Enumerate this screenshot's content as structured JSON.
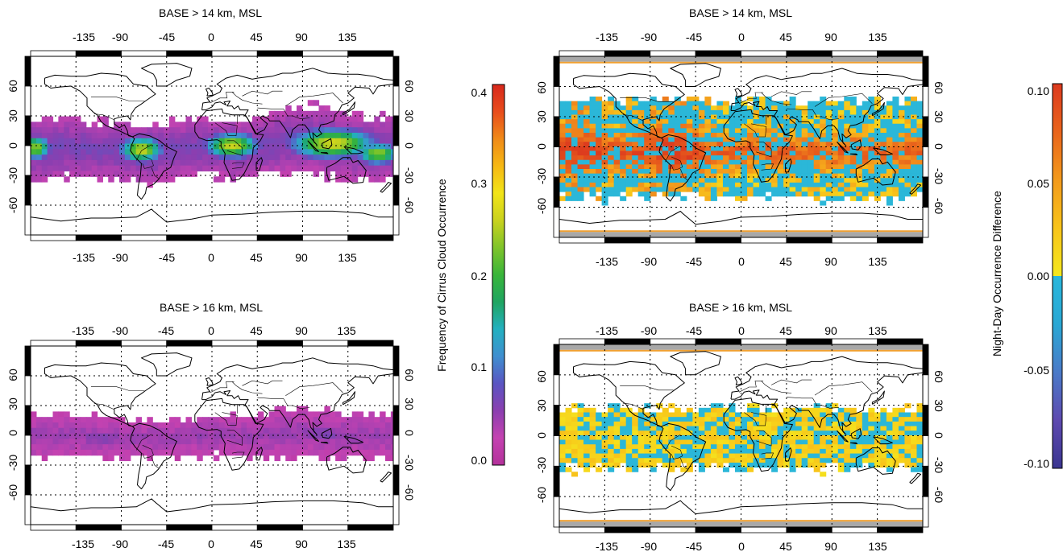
{
  "panels": [
    {
      "id": "p1",
      "title": "BASE > 14 km, MSL",
      "colormap": "freq",
      "band": {
        "cols": [
          {
            "lon": -175,
            "lat_center": -3,
            "half_width": 33
          },
          {
            "lon": -150,
            "lat_center": -2,
            "half_width": 30
          },
          {
            "lon": -120,
            "lat_center": -3,
            "half_width": 28
          },
          {
            "lon": -90,
            "lat_center": -5,
            "half_width": 28
          },
          {
            "lon": -60,
            "lat_center": -8,
            "half_width": 30
          },
          {
            "lon": -30,
            "lat_center": -3,
            "half_width": 26
          },
          {
            "lon": 0,
            "lat_center": 0,
            "half_width": 28
          },
          {
            "lon": 30,
            "lat_center": -5,
            "half_width": 30
          },
          {
            "lon": 60,
            "lat_center": 2,
            "half_width": 28
          },
          {
            "lon": 90,
            "lat_center": 8,
            "half_width": 32
          },
          {
            "lon": 120,
            "lat_center": 3,
            "half_width": 34
          },
          {
            "lon": 150,
            "lat_center": -3,
            "half_width": 32
          },
          {
            "lon": 180,
            "lat_center": -2,
            "half_width": 32
          }
        ],
        "hotspots": [
          {
            "lon": -175,
            "lat": -2,
            "value": 0.24,
            "rlon": 14,
            "rlat": 11
          },
          {
            "lon": -70,
            "lat": -4,
            "value": 0.26,
            "rlon": 20,
            "rlat": 12
          },
          {
            "lon": 20,
            "lat": 0,
            "value": 0.26,
            "rlon": 25,
            "rlat": 12
          },
          {
            "lon": 120,
            "lat": 2,
            "value": 0.27,
            "rlon": 40,
            "rlat": 14
          },
          {
            "lon": 165,
            "lat": -8,
            "value": 0.24,
            "rlon": 20,
            "rlat": 10
          }
        ],
        "base_value": 0.06
      }
    },
    {
      "id": "p2",
      "title": "BASE > 14 km, MSL",
      "colormap": "diff",
      "pattern": "p2"
    },
    {
      "id": "p3",
      "title": "BASE > 16 km, MSL",
      "colormap": "freq",
      "band": {
        "cols": [
          {
            "lon": -175,
            "lat_center": 0,
            "half_width": 22
          },
          {
            "lon": -135,
            "lat_center": 0,
            "half_width": 20
          },
          {
            "lon": -90,
            "lat_center": -3,
            "half_width": 20
          },
          {
            "lon": -45,
            "lat_center": -3,
            "half_width": 18
          },
          {
            "lon": 0,
            "lat_center": 0,
            "half_width": 20
          },
          {
            "lon": 45,
            "lat_center": 0,
            "half_width": 22
          },
          {
            "lon": 90,
            "lat_center": 3,
            "half_width": 24
          },
          {
            "lon": 135,
            "lat_center": 0,
            "half_width": 24
          },
          {
            "lon": 180,
            "lat_center": 0,
            "half_width": 22
          }
        ],
        "hotspots": [
          {
            "lon": -110,
            "lat": -3,
            "value": 0.07,
            "rlon": 30,
            "rlat": 8
          },
          {
            "lon": 110,
            "lat": 2,
            "value": 0.07,
            "rlon": 40,
            "rlat": 8
          }
        ],
        "base_value": 0.04
      }
    },
    {
      "id": "p4",
      "title": "BASE > 16 km, MSL",
      "colormap": "diff",
      "pattern": "p4"
    }
  ],
  "lon_ticks": [
    "-135",
    "-90",
    "-45",
    "0",
    "45",
    "90",
    "135"
  ],
  "lat_ticks_left": [
    "60",
    "30",
    "0",
    "-30",
    "-60"
  ],
  "lat_ticks_right": [
    "60",
    "30",
    "0",
    "-30",
    "-60"
  ],
  "colorbars": [
    {
      "id": "cb1",
      "label": "Frequency of Cirrus Cloud Occurrence",
      "ticks": [
        "0.4",
        "0.3",
        "0.2",
        "0.1",
        "0.0"
      ],
      "range": [
        0.0,
        0.4
      ]
    },
    {
      "id": "cb2",
      "label": "Night-Day Occurrence Difference",
      "ticks": [
        "0.10",
        "0.05",
        "0.00",
        "-0.05",
        "-0.10"
      ],
      "range": [
        -0.1,
        0.1
      ]
    }
  ],
  "colors": {
    "freq_stops": [
      "#b4319b",
      "#c442b1",
      "#8b3fb0",
      "#5a55c2",
      "#3f8fd0",
      "#23b0c0",
      "#1fa561",
      "#39b53a",
      "#7fc42a",
      "#c9d21e",
      "#f2e418",
      "#f6b814",
      "#f08a18",
      "#e84c1c",
      "#d8281c"
    ],
    "diff_negative": "#2bb7d8",
    "diff_zero": "#f4e81e",
    "diff_positive_stops": [
      "#f4e81e",
      "#f8c41a",
      "#f39a1c",
      "#e9641c",
      "#dc3a1e"
    ],
    "diff_negative_stops": [
      "#3a3590",
      "#5e4ab0",
      "#4a7ac8",
      "#2aa8d4",
      "#29b7dc"
    ],
    "coast": "#000000",
    "pole_band": "#a8a8a8",
    "pole_line": "#f0a030"
  }
}
